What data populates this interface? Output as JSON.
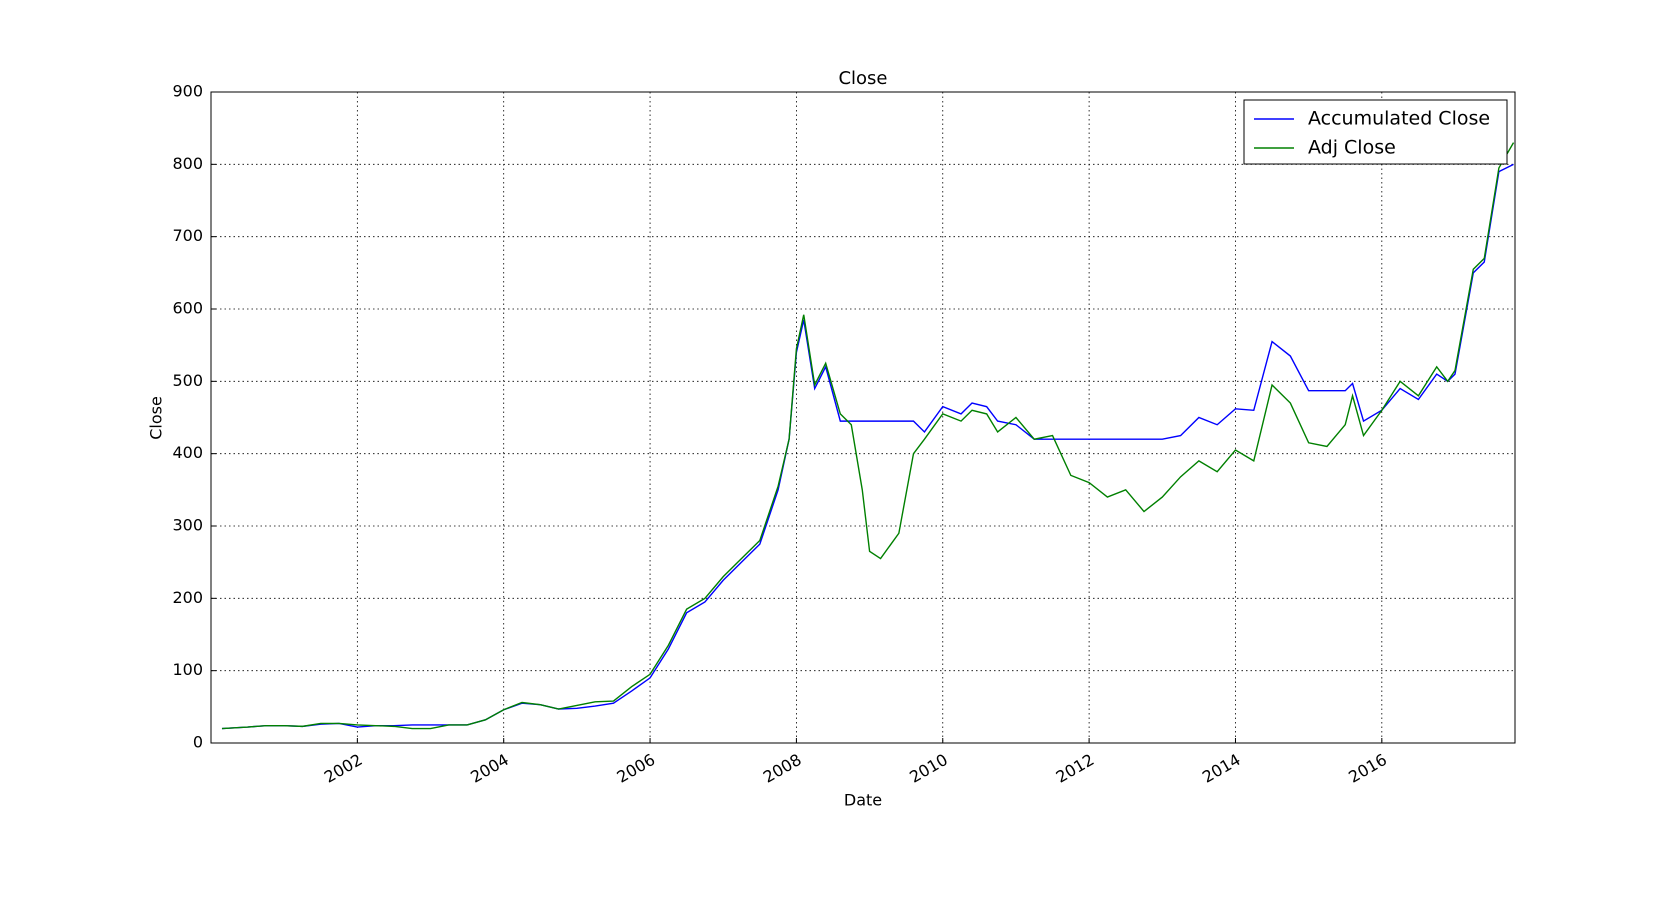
{
  "chart_data": {
    "type": "line",
    "title": "Close",
    "x_label": "Date",
    "y_label": "Close",
    "x": [
      2000.15,
      2000.5,
      2000.75,
      2001.0,
      2001.25,
      2001.5,
      2001.75,
      2002.0,
      2002.25,
      2002.5,
      2002.75,
      2003.0,
      2003.25,
      2003.5,
      2003.75,
      2004.0,
      2004.25,
      2004.5,
      2004.75,
      2005.0,
      2005.25,
      2005.5,
      2005.75,
      2006.0,
      2006.25,
      2006.5,
      2006.75,
      2007.0,
      2007.25,
      2007.5,
      2007.75,
      2007.9,
      2008.0,
      2008.1,
      2008.25,
      2008.4,
      2008.6,
      2008.75,
      2008.9,
      2009.0,
      2009.15,
      2009.4,
      2009.6,
      2009.75,
      2010.0,
      2010.25,
      2010.4,
      2010.6,
      2010.75,
      2011.0,
      2011.25,
      2011.5,
      2011.75,
      2012.0,
      2012.25,
      2012.5,
      2012.75,
      2013.0,
      2013.25,
      2013.5,
      2013.75,
      2014.0,
      2014.25,
      2014.5,
      2014.75,
      2015.0,
      2015.25,
      2015.5,
      2015.6,
      2015.75,
      2016.0,
      2016.25,
      2016.5,
      2016.75,
      2016.9,
      2017.0,
      2017.25,
      2017.4,
      2017.6,
      2017.8
    ],
    "series": [
      {
        "name": "Accumulated Close",
        "color": "#0000ff",
        "values": [
          20,
          22,
          24,
          24,
          23,
          26,
          27,
          22,
          24,
          24,
          25,
          25,
          25,
          25,
          32,
          46,
          55,
          53,
          47,
          48,
          51,
          55,
          72,
          90,
          130,
          180,
          195,
          225,
          250,
          275,
          350,
          420,
          540,
          585,
          490,
          520,
          445,
          445,
          445,
          445,
          445,
          445,
          445,
          430,
          465,
          455,
          470,
          465,
          445,
          440,
          420,
          420,
          420,
          420,
          420,
          420,
          420,
          420,
          425,
          450,
          440,
          462,
          460,
          555,
          535,
          487,
          487,
          487,
          497,
          445,
          460,
          490,
          475,
          510,
          500,
          510,
          650,
          665,
          790,
          800
        ]
      },
      {
        "name": "Adj Close",
        "color": "#008000",
        "values": [
          20,
          22,
          24,
          24,
          23,
          27,
          27,
          25,
          24,
          23,
          20,
          20,
          25,
          25,
          32,
          46,
          56,
          53,
          47,
          52,
          57,
          58,
          78,
          95,
          135,
          185,
          200,
          230,
          255,
          280,
          355,
          420,
          545,
          592,
          495,
          525,
          455,
          440,
          350,
          265,
          255,
          290,
          400,
          420,
          455,
          445,
          460,
          455,
          430,
          450,
          420,
          425,
          370,
          360,
          340,
          350,
          320,
          340,
          368,
          390,
          375,
          405,
          390,
          495,
          470,
          415,
          410,
          440,
          480,
          425,
          460,
          500,
          480,
          520,
          500,
          515,
          655,
          670,
          795,
          830
        ]
      }
    ],
    "xlim": [
      2000.0,
      2017.82
    ],
    "xticks": [
      2002,
      2004,
      2006,
      2008,
      2010,
      2012,
      2014,
      2016
    ],
    "ylim": [
      0,
      900
    ],
    "yticks": [
      0,
      100,
      200,
      300,
      400,
      500,
      600,
      700,
      800,
      900
    ],
    "grid": true,
    "legend": "upper right"
  }
}
